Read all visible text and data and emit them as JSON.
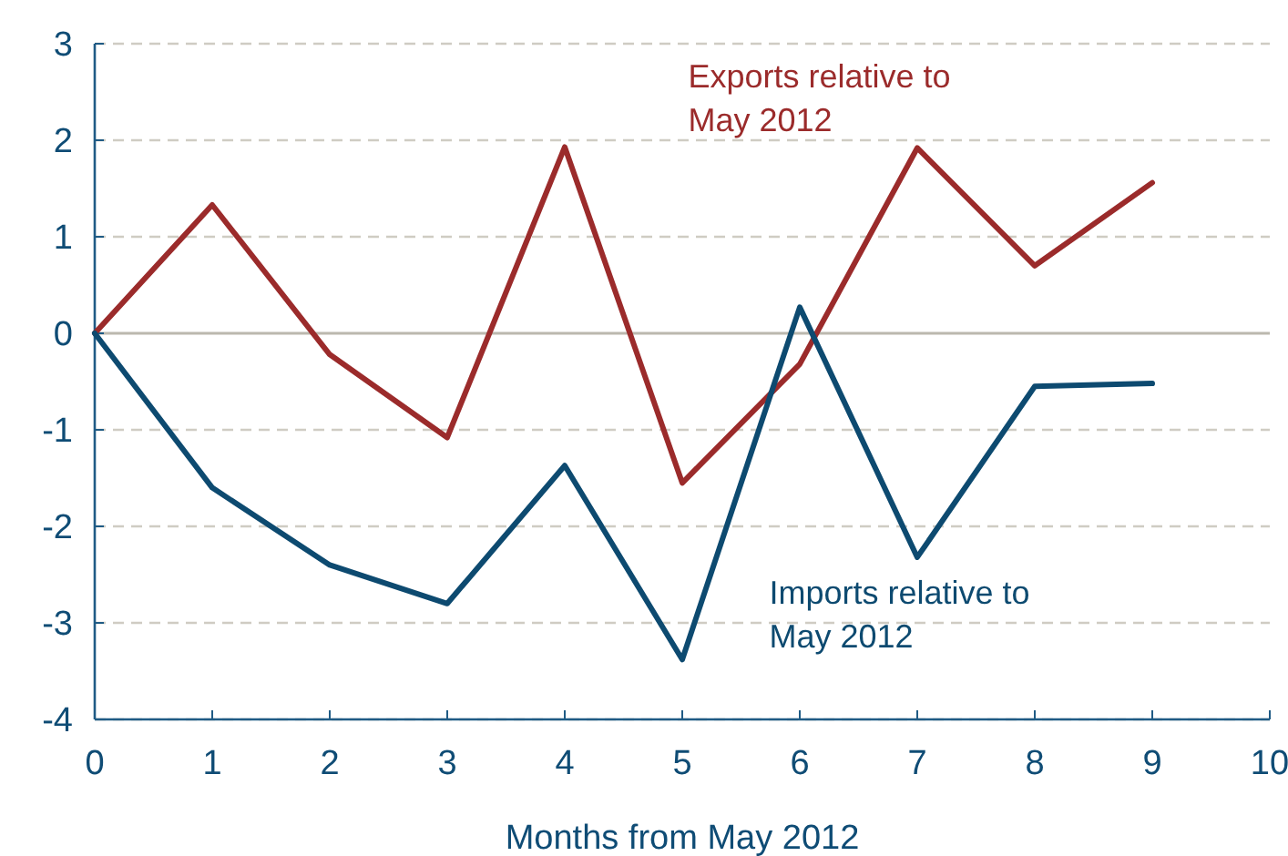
{
  "chart_data": {
    "type": "line",
    "xlabel": "Months from May 2012",
    "x": [
      0,
      1,
      2,
      3,
      4,
      5,
      6,
      7,
      8,
      9
    ],
    "xlim": [
      0,
      10
    ],
    "xticks": [
      0,
      1,
      2,
      3,
      4,
      5,
      6,
      7,
      8,
      9,
      10
    ],
    "ylim": [
      -4,
      3
    ],
    "yticks": [
      -4,
      -3,
      -2,
      -1,
      0,
      1,
      2,
      3
    ],
    "grid": "y",
    "marker": "none",
    "line_style": "solid",
    "series": [
      {
        "name": "Exports relative to May 2012",
        "color": "#9b2b2b",
        "values": [
          0,
          1.33,
          -0.22,
          -1.08,
          1.93,
          -1.55,
          -0.32,
          1.92,
          0.7,
          1.56
        ]
      },
      {
        "name": "Imports relative to May 2012",
        "color": "#0d4a70",
        "values": [
          0,
          -1.6,
          -2.4,
          -2.8,
          -1.37,
          -3.38,
          0.27,
          -2.32,
          -0.55,
          -0.52
        ]
      }
    ]
  }
}
